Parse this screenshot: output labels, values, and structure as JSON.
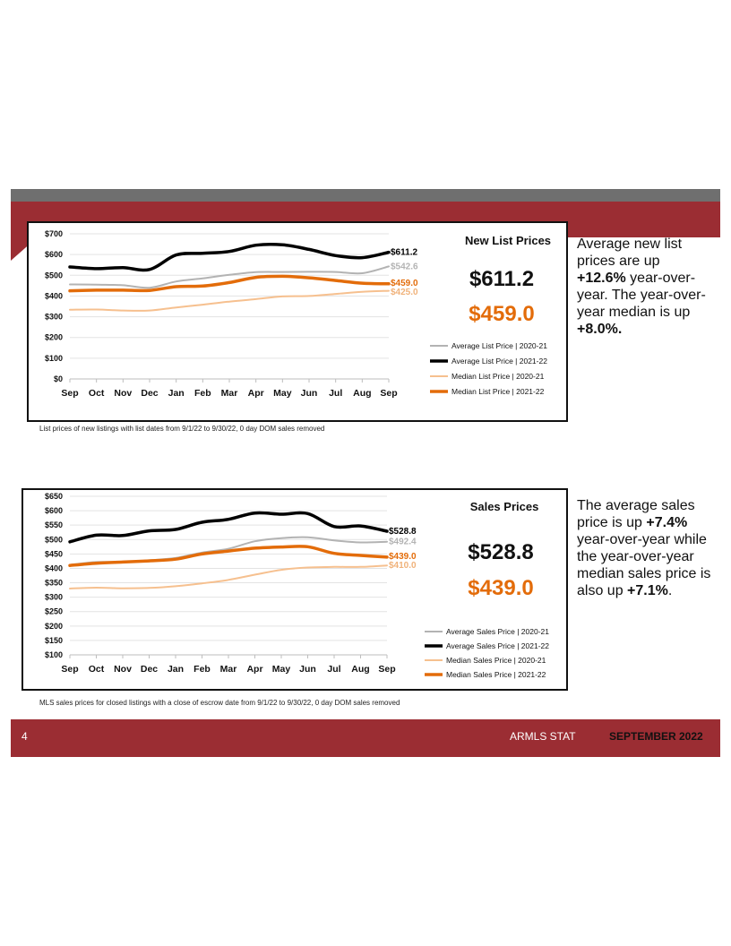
{
  "page": {
    "page_number": "4",
    "org": "ARMLS STAT",
    "date": "SEPTEMBER 2022"
  },
  "colors": {
    "red": "#9b2d33",
    "gray_band": "#6f6f6f",
    "avg_prev": "#b3b3b3",
    "avg_curr": "#000000",
    "med_prev": "#f6c08f",
    "med_curr": "#e36c0a"
  },
  "sections": [
    {
      "side_text": [
        {
          "t": "Average new list prices are up ",
          "b": false
        },
        {
          "t": "+12.6%",
          "b": true
        },
        {
          "t": " year-over-year. The year-over-year median is up ",
          "b": false
        },
        {
          "t": "+8.0%.",
          "b": true
        }
      ],
      "footnote": "List prices of new listings with list dates from 9/1/22 to 9/30/22, 0 day DOM sales removed",
      "chart_data": {
        "type": "line",
        "title": "New List Prices",
        "categories": [
          "Sep",
          "Oct",
          "Nov",
          "Dec",
          "Jan",
          "Feb",
          "Mar",
          "Apr",
          "May",
          "Jun",
          "Jul",
          "Aug",
          "Sep"
        ],
        "yticks": [
          "$0",
          "$100",
          "$200",
          "$300",
          "$400",
          "$500",
          "$600",
          "$700"
        ],
        "ylim": [
          0,
          700
        ],
        "big_values": [
          "$611.2",
          "$459.0"
        ],
        "series": [
          {
            "name": "Average List Price | 2020-21",
            "color": "#b3b3b3",
            "end_label": "$542.6",
            "values": [
              456,
              455,
              452,
              440,
              470,
              485,
              502,
              515,
              516,
              517,
              516,
              510,
              542.6
            ]
          },
          {
            "name": "Average List Price | 2021-22",
            "color": "#000000",
            "end_label": "$611.2",
            "values": [
              540,
              532,
              537,
              528,
              598,
              606,
              615,
              645,
              647,
              625,
              595,
              585,
              611.2
            ]
          },
          {
            "name": "Median List Price | 2020-21",
            "color": "#f6c08f",
            "end_label": "$425.0",
            "values": [
              334,
              335,
              330,
              330,
              345,
              358,
              373,
              385,
              398,
              400,
              410,
              420,
              425.0
            ]
          },
          {
            "name": "Median List Price | 2021-22",
            "color": "#e36c0a",
            "end_label": "$459.0",
            "values": [
              425,
              428,
              428,
              427,
              445,
              448,
              465,
              490,
              495,
              488,
              475,
              462,
              459.0
            ]
          }
        ]
      }
    },
    {
      "side_text": [
        {
          "t": "The average sales price is up ",
          "b": false
        },
        {
          "t": "+7.4%",
          "b": true
        },
        {
          "t": " year-over-year while the year-over-year median sales price is also up ",
          "b": false
        },
        {
          "t": "+7.1%",
          "b": true
        },
        {
          "t": ".",
          "b": false
        }
      ],
      "footnote": "MLS sales prices for closed listings with a close of escrow date from 9/1/22 to 9/30/22, 0 day DOM sales removed",
      "chart_data": {
        "type": "line",
        "title": "Sales Prices",
        "categories": [
          "Sep",
          "Oct",
          "Nov",
          "Dec",
          "Jan",
          "Feb",
          "Mar",
          "Apr",
          "May",
          "Jun",
          "Jul",
          "Aug",
          "Sep"
        ],
        "yticks": [
          "$100",
          "$150",
          "$200",
          "$250",
          "$300",
          "$350",
          "$400",
          "$450",
          "$500",
          "$550",
          "$600",
          "$650"
        ],
        "ylim": [
          100,
          650
        ],
        "big_values": [
          "$528.8",
          "$439.0"
        ],
        "series": [
          {
            "name": "Average Sales Price | 2020-21",
            "color": "#b3b3b3",
            "end_label": "$492.4",
            "values": [
              412,
              422,
              422,
              428,
              436,
              455,
              468,
              494,
              505,
              508,
              497,
              490,
              492.4
            ]
          },
          {
            "name": "Average Sales Price | 2021-22",
            "color": "#000000",
            "end_label": "$528.8",
            "values": [
              492,
              515,
              514,
              530,
              535,
              560,
              570,
              592,
              588,
              590,
              545,
              547,
              528.8
            ]
          },
          {
            "name": "Median Sales Price | 2020-21",
            "color": "#f6c08f",
            "end_label": "$410.0",
            "values": [
              330,
              333,
              331,
              332,
              338,
              348,
              360,
              378,
              395,
              403,
              405,
              405,
              410.0
            ]
          },
          {
            "name": "Median Sales Price | 2021-22",
            "color": "#e36c0a",
            "end_label": "$439.0",
            "values": [
              410,
              418,
              422,
              426,
              432,
              450,
              460,
              470,
              474,
              475,
              452,
              445,
              439.0
            ]
          }
        ]
      }
    }
  ]
}
